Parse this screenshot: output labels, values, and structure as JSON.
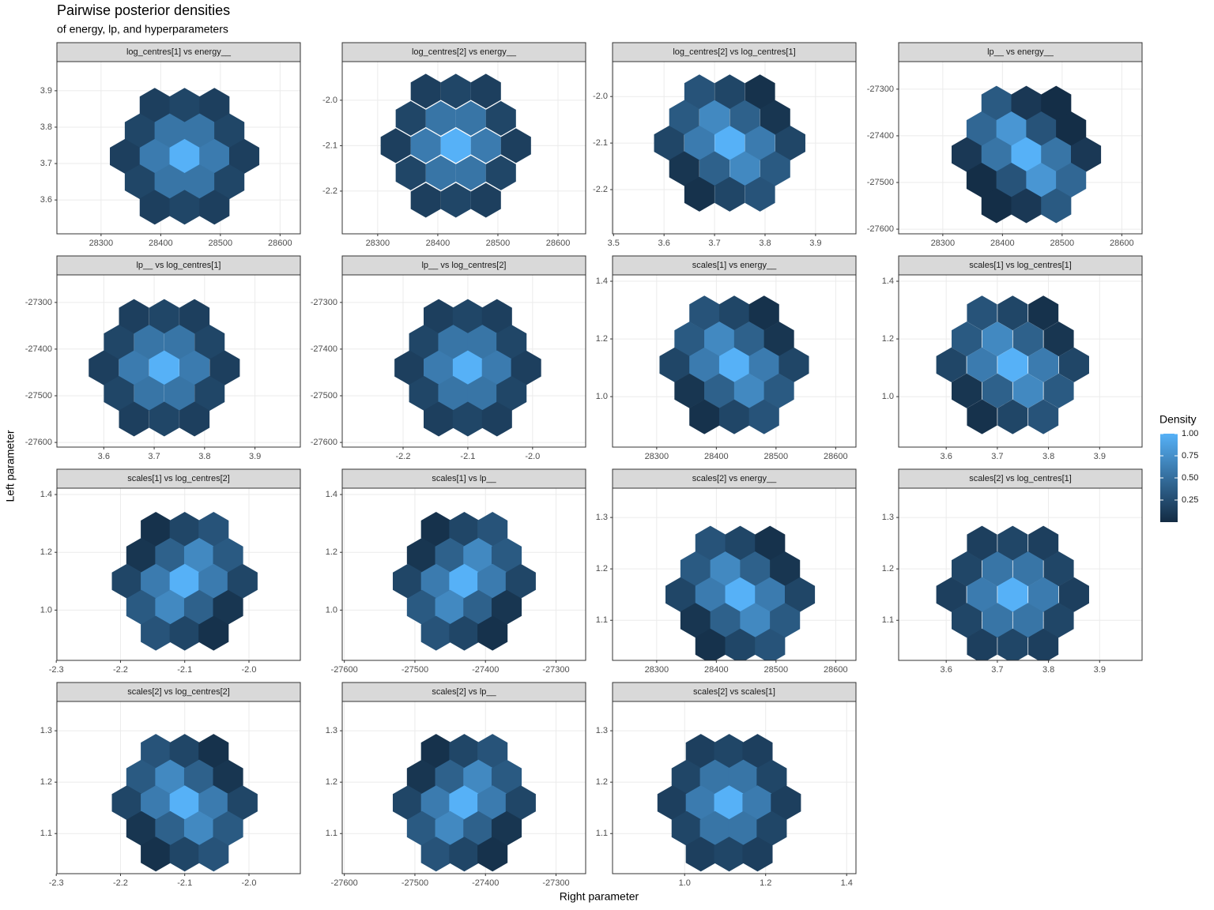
{
  "title": "Pairwise posterior densities",
  "subtitle": "of energy, lp, and hyperparameters",
  "x_label": "Right parameter",
  "y_label": "Left parameter",
  "legend": {
    "title": "Density",
    "colors": [
      "#132B43",
      "#56B1F7"
    ],
    "limits": [
      0,
      1
    ],
    "ticks": [
      0.25,
      {
        "value": 0.5,
        "label": "0.50"
      },
      0.75,
      {
        "value": 1,
        "label": "1.00"
      }
    ]
  },
  "chart_data": [
    {
      "type": "hexbin",
      "title": "log_centres[1] vs energy__",
      "x": [
        28390,
        28440,
        28490,
        28365,
        28415,
        28465,
        28515,
        28340,
        28390,
        28440,
        28490,
        28540,
        28365,
        28415,
        28465,
        28515,
        28390,
        28440,
        28490
      ],
      "y": [
        3.86,
        3.86,
        3.86,
        3.79,
        3.79,
        3.79,
        3.79,
        3.72,
        3.72,
        3.72,
        3.72,
        3.72,
        3.65,
        3.65,
        3.65,
        3.65,
        3.58,
        3.58,
        3.58
      ],
      "values": [
        0.15,
        0.2,
        0.15,
        0.2,
        0.55,
        0.55,
        0.2,
        0.15,
        0.6,
        1,
        0.6,
        0.15,
        0.2,
        0.55,
        0.55,
        0.2,
        0.15,
        0.2,
        0.15
      ],
      "xlim": [
        28226,
        28634
      ],
      "xticks": [
        28300,
        28400,
        28500,
        28600
      ],
      "ylim": [
        3.507,
        3.98
      ],
      "yticks": [
        3.6,
        3.7,
        3.8,
        3.9
      ]
    },
    {
      "type": "hexbin",
      "title": "log_centres[2] vs energy__",
      "x": [
        28380,
        28430,
        28480,
        28355,
        28405,
        28455,
        28505,
        28330,
        28380,
        28430,
        28480,
        28530,
        28355,
        28405,
        28455,
        28505,
        28380,
        28430,
        28480
      ],
      "y": [
        -1.98,
        -1.98,
        -1.98,
        -2.04,
        -2.04,
        -2.04,
        -2.04,
        -2.1,
        -2.1,
        -2.1,
        -2.1,
        -2.1,
        -2.16,
        -2.16,
        -2.16,
        -2.16,
        -2.22,
        -2.22,
        -2.22
      ],
      "values": [
        0.15,
        0.2,
        0.15,
        0.2,
        0.55,
        0.55,
        0.2,
        0.15,
        0.6,
        1,
        0.6,
        0.15,
        0.2,
        0.55,
        0.55,
        0.2,
        0.15,
        0.2,
        0.15
      ],
      "xlim": [
        28241,
        28646
      ],
      "xticks": [
        28300,
        28400,
        28500,
        28600
      ],
      "ylim": [
        -2.294,
        -1.915
      ],
      "yticks": [
        -2.2,
        -2.1,
        {
          "value": -2,
          "label": "-2.0"
        }
      ]
    },
    {
      "type": "hexbin",
      "title": "log_centres[2] vs log_centres[1]",
      "x": [
        3.67,
        3.73,
        3.79,
        3.64,
        3.7,
        3.76,
        3.82,
        3.61,
        3.67,
        3.73,
        3.79,
        3.85,
        3.64,
        3.7,
        3.76,
        3.82,
        3.67,
        3.73,
        3.79
      ],
      "y": [
        -1.99,
        -1.99,
        -1.99,
        -2.045,
        -2.045,
        -2.045,
        -2.045,
        -2.1,
        -2.1,
        -2.1,
        -2.1,
        -2.1,
        -2.155,
        -2.155,
        -2.155,
        -2.155,
        -2.21,
        -2.21,
        -2.21
      ],
      "values": [
        0.3,
        0.2,
        0.05,
        0.35,
        0.7,
        0.4,
        0.08,
        0.2,
        0.6,
        1,
        0.6,
        0.2,
        0.08,
        0.4,
        0.7,
        0.35,
        0.05,
        0.2,
        0.3
      ],
      "xlim": [
        3.498,
        3.98
      ],
      "xticks": [
        3.5,
        3.6,
        3.7,
        3.8,
        3.9
      ],
      "ylim": [
        -2.295,
        -1.925
      ],
      "yticks": [
        -2.2,
        -2.1,
        {
          "value": -2,
          "label": "-2.0"
        }
      ]
    },
    {
      "type": "hexbin",
      "title": "lp__ vs energy__",
      "x": [
        28390,
        28440,
        28490,
        28365,
        28415,
        28465,
        28515,
        28340,
        28390,
        28440,
        28490,
        28540,
        28365,
        28415,
        28465,
        28515,
        28390,
        28440,
        28490
      ],
      "y": [
        -27330,
        -27330,
        -27330,
        -27385,
        -27385,
        -27385,
        -27385,
        -27440,
        -27440,
        -27440,
        -27440,
        -27440,
        -27495,
        -27495,
        -27495,
        -27495,
        -27550,
        -27550,
        -27550
      ],
      "values": [
        0.35,
        0.1,
        0.02,
        0.45,
        0.8,
        0.3,
        0.02,
        0.1,
        0.55,
        1,
        0.55,
        0.1,
        0.02,
        0.3,
        0.8,
        0.45,
        0.02,
        0.1,
        0.35
      ],
      "xlim": [
        28226,
        28634
      ],
      "xticks": [
        28300,
        28400,
        28500,
        28600
      ],
      "ylim": [
        -27610,
        -27241
      ],
      "yticks": [
        -27600,
        -27500,
        -27400,
        -27300
      ]
    },
    {
      "type": "hexbin",
      "title": "lp__ vs log_centres[1]",
      "x": [
        3.66,
        3.72,
        3.78,
        3.63,
        3.69,
        3.75,
        3.81,
        3.6,
        3.66,
        3.72,
        3.78,
        3.84,
        3.63,
        3.69,
        3.75,
        3.81,
        3.66,
        3.72,
        3.78
      ],
      "y": [
        -27330,
        -27330,
        -27330,
        -27385,
        -27385,
        -27385,
        -27385,
        -27440,
        -27440,
        -27440,
        -27440,
        -27440,
        -27495,
        -27495,
        -27495,
        -27495,
        -27550,
        -27550,
        -27550
      ],
      "values": [
        0.15,
        0.2,
        0.15,
        0.2,
        0.55,
        0.55,
        0.2,
        0.15,
        0.6,
        1,
        0.6,
        0.15,
        0.2,
        0.55,
        0.55,
        0.2,
        0.15,
        0.2,
        0.15
      ],
      "xlim": [
        3.507,
        3.99
      ],
      "xticks": [
        3.6,
        3.7,
        3.8,
        3.9
      ],
      "ylim": [
        -27610,
        -27241
      ],
      "yticks": [
        -27600,
        -27500,
        -27400,
        -27300
      ]
    },
    {
      "type": "hexbin",
      "title": "lp__ vs log_centres[2]",
      "x": [
        -2.145,
        -2.1,
        -2.055,
        -2.1675,
        -2.1225,
        -2.0775,
        -2.0325,
        -2.19,
        -2.145,
        -2.1,
        -2.055,
        -2.01,
        -2.1675,
        -2.1225,
        -2.0775,
        -2.0325,
        -2.145,
        -2.1,
        -2.055
      ],
      "y": [
        -27330,
        -27330,
        -27330,
        -27385,
        -27385,
        -27385,
        -27385,
        -27440,
        -27440,
        -27440,
        -27440,
        -27440,
        -27495,
        -27495,
        -27495,
        -27495,
        -27550,
        -27550,
        -27550
      ],
      "values": [
        0.15,
        0.2,
        0.15,
        0.2,
        0.55,
        0.55,
        0.2,
        0.15,
        0.6,
        1,
        0.6,
        0.15,
        0.2,
        0.55,
        0.55,
        0.2,
        0.15,
        0.2,
        0.15
      ],
      "xlim": [
        -2.294,
        -1.918
      ],
      "xticks": [
        -2.2,
        -2.1,
        {
          "value": -2,
          "label": "-2.0"
        }
      ],
      "ylim": [
        -27610,
        -27241
      ],
      "yticks": [
        -27600,
        -27500,
        -27400,
        -27300
      ]
    },
    {
      "type": "hexbin",
      "title": "scales[1] vs energy__",
      "x": [
        28380,
        28430,
        28480,
        28355,
        28405,
        28455,
        28505,
        28330,
        28380,
        28430,
        28480,
        28530,
        28355,
        28405,
        28455,
        28505,
        28380,
        28430,
        28480
      ],
      "y": [
        1.29,
        1.29,
        1.29,
        1.2,
        1.2,
        1.2,
        1.2,
        1.11,
        1.11,
        1.11,
        1.11,
        1.11,
        1.02,
        1.02,
        1.02,
        1.02,
        0.93,
        0.93,
        0.93
      ],
      "values": [
        0.3,
        0.2,
        0.05,
        0.35,
        0.7,
        0.4,
        0.08,
        0.2,
        0.6,
        1,
        0.6,
        0.2,
        0.08,
        0.4,
        0.7,
        0.35,
        0.05,
        0.2,
        0.3
      ],
      "xlim": [
        28226,
        28634
      ],
      "xticks": [
        28300,
        28400,
        28500,
        28600
      ],
      "ylim": [
        0.825,
        1.422
      ],
      "yticks": [
        {
          "value": 1,
          "label": "1.0"
        },
        1.2,
        1.4
      ]
    },
    {
      "type": "hexbin",
      "title": "scales[1] vs log_centres[1]",
      "x": [
        3.67,
        3.73,
        3.79,
        3.64,
        3.7,
        3.76,
        3.82,
        3.61,
        3.67,
        3.73,
        3.79,
        3.85,
        3.64,
        3.7,
        3.76,
        3.82,
        3.67,
        3.73,
        3.79
      ],
      "y": [
        1.29,
        1.29,
        1.29,
        1.2,
        1.2,
        1.2,
        1.2,
        1.11,
        1.11,
        1.11,
        1.11,
        1.11,
        1.02,
        1.02,
        1.02,
        1.02,
        0.93,
        0.93,
        0.93
      ],
      "values": [
        0.3,
        0.2,
        0.05,
        0.35,
        0.7,
        0.4,
        0.08,
        0.2,
        0.6,
        1,
        0.6,
        0.2,
        0.08,
        0.4,
        0.7,
        0.35,
        0.05,
        0.2,
        0.3
      ],
      "xlim": [
        3.507,
        3.983
      ],
      "xticks": [
        3.6,
        3.7,
        3.8,
        3.9
      ],
      "ylim": [
        0.825,
        1.422
      ],
      "yticks": [
        {
          "value": 1,
          "label": "1.0"
        },
        1.2,
        1.4
      ]
    },
    {
      "type": "hexbin",
      "title": "scales[1] vs log_centres[2]",
      "x": [
        -2.145,
        -2.1,
        -2.055,
        -2.1675,
        -2.1225,
        -2.0775,
        -2.0325,
        -2.19,
        -2.145,
        -2.1,
        -2.055,
        -2.01,
        -2.1675,
        -2.1225,
        -2.0775,
        -2.0325,
        -2.145,
        -2.1,
        -2.055
      ],
      "y": [
        1.28,
        1.28,
        1.28,
        1.19,
        1.19,
        1.19,
        1.19,
        1.1,
        1.1,
        1.1,
        1.1,
        1.1,
        1.01,
        1.01,
        1.01,
        1.01,
        0.92,
        0.92,
        0.92
      ],
      "values": [
        0.05,
        0.2,
        0.3,
        0.08,
        0.4,
        0.7,
        0.35,
        0.2,
        0.6,
        1,
        0.6,
        0.2,
        0.35,
        0.7,
        0.4,
        0.08,
        0.3,
        0.2,
        0.05
      ],
      "xlim": [
        -2.299,
        -1.92
      ],
      "xticks": [
        -2.3,
        -2.2,
        -2.1,
        {
          "value": -2,
          "label": "-2.0"
        }
      ],
      "ylim": [
        0.826,
        1.422
      ],
      "yticks": [
        {
          "value": 1,
          "label": "1.0"
        },
        1.2,
        1.4
      ]
    },
    {
      "type": "hexbin",
      "title": "scales[1] vs lp__",
      "x": [
        -27470,
        -27430,
        -27390,
        -27490,
        -27450,
        -27410,
        -27370,
        -27510,
        -27470,
        -27430,
        -27390,
        -27350,
        -27490,
        -27450,
        -27410,
        -27370,
        -27470,
        -27430,
        -27390
      ],
      "y": [
        1.28,
        1.28,
        1.28,
        1.19,
        1.19,
        1.19,
        1.19,
        1.1,
        1.1,
        1.1,
        1.1,
        1.1,
        1.01,
        1.01,
        1.01,
        1.01,
        0.92,
        0.92,
        0.92
      ],
      "values": [
        0.05,
        0.2,
        0.3,
        0.08,
        0.4,
        0.7,
        0.35,
        0.2,
        0.6,
        1,
        0.6,
        0.2,
        0.35,
        0.7,
        0.4,
        0.08,
        0.3,
        0.2,
        0.05
      ],
      "xlim": [
        -27603,
        -27258
      ],
      "xticks": [
        -27600,
        -27500,
        -27400,
        -27300
      ],
      "ylim": [
        0.826,
        1.422
      ],
      "yticks": [
        {
          "value": 1,
          "label": "1.0"
        },
        1.2,
        1.4
      ]
    },
    {
      "type": "hexbin",
      "title": "scales[2] vs energy__",
      "x": [
        28390,
        28440,
        28490,
        28365,
        28415,
        28465,
        28515,
        28340,
        28390,
        28440,
        28490,
        28540,
        28365,
        28415,
        28465,
        28515,
        28390,
        28440,
        28490
      ],
      "y": [
        1.25,
        1.25,
        1.25,
        1.2,
        1.2,
        1.2,
        1.2,
        1.15,
        1.15,
        1.15,
        1.15,
        1.15,
        1.1,
        1.1,
        1.1,
        1.1,
        1.05,
        1.05,
        1.05
      ],
      "values": [
        0.3,
        0.2,
        0.05,
        0.35,
        0.7,
        0.4,
        0.08,
        0.2,
        0.6,
        1,
        0.6,
        0.2,
        0.08,
        0.4,
        0.7,
        0.35,
        0.05,
        0.2,
        0.3
      ],
      "xlim": [
        28226,
        28634
      ],
      "xticks": [
        28300,
        28400,
        28500,
        28600
      ],
      "ylim": [
        1.022,
        1.357
      ],
      "yticks": [
        1.1,
        1.2,
        1.3
      ]
    },
    {
      "type": "hexbin",
      "title": "scales[2] vs log_centres[1]",
      "x": [
        3.67,
        3.73,
        3.79,
        3.64,
        3.7,
        3.76,
        3.82,
        3.61,
        3.67,
        3.73,
        3.79,
        3.85,
        3.64,
        3.7,
        3.76,
        3.82,
        3.67,
        3.73,
        3.79
      ],
      "y": [
        1.25,
        1.25,
        1.25,
        1.2,
        1.2,
        1.2,
        1.2,
        1.15,
        1.15,
        1.15,
        1.15,
        1.15,
        1.1,
        1.1,
        1.1,
        1.1,
        1.05,
        1.05,
        1.05
      ],
      "values": [
        0.15,
        0.2,
        0.15,
        0.2,
        0.55,
        0.55,
        0.2,
        0.15,
        0.6,
        1,
        0.6,
        0.15,
        0.2,
        0.55,
        0.55,
        0.2,
        0.15,
        0.2,
        0.15
      ],
      "xlim": [
        3.507,
        3.983
      ],
      "xticks": [
        3.6,
        3.7,
        3.8,
        3.9
      ],
      "ylim": [
        1.022,
        1.357
      ],
      "yticks": [
        1.1,
        1.2,
        1.3
      ]
    },
    {
      "type": "hexbin",
      "title": "scales[2] vs log_centres[2]",
      "x": [
        -2.145,
        -2.1,
        -2.055,
        -2.1675,
        -2.1225,
        -2.0775,
        -2.0325,
        -2.19,
        -2.145,
        -2.1,
        -2.055,
        -2.01,
        -2.1675,
        -2.1225,
        -2.0775,
        -2.0325,
        -2.145,
        -2.1,
        -2.055
      ],
      "y": [
        1.26,
        1.26,
        1.26,
        1.21,
        1.21,
        1.21,
        1.21,
        1.16,
        1.16,
        1.16,
        1.16,
        1.16,
        1.11,
        1.11,
        1.11,
        1.11,
        1.06,
        1.06,
        1.06
      ],
      "values": [
        0.3,
        0.2,
        0.05,
        0.35,
        0.7,
        0.4,
        0.08,
        0.2,
        0.6,
        1,
        0.6,
        0.2,
        0.08,
        0.4,
        0.7,
        0.35,
        0.05,
        0.2,
        0.3
      ],
      "xlim": [
        -2.299,
        -1.92
      ],
      "xticks": [
        -2.3,
        -2.2,
        -2.1,
        {
          "value": -2,
          "label": "-2.0"
        }
      ],
      "ylim": [
        1.022,
        1.357
      ],
      "yticks": [
        1.1,
        1.2,
        1.3
      ]
    },
    {
      "type": "hexbin",
      "title": "scales[2] vs lp__",
      "x": [
        -27470,
        -27430,
        -27390,
        -27490,
        -27450,
        -27410,
        -27370,
        -27510,
        -27470,
        -27430,
        -27390,
        -27350,
        -27490,
        -27450,
        -27410,
        -27370,
        -27470,
        -27430,
        -27390
      ],
      "y": [
        1.26,
        1.26,
        1.26,
        1.21,
        1.21,
        1.21,
        1.21,
        1.16,
        1.16,
        1.16,
        1.16,
        1.16,
        1.11,
        1.11,
        1.11,
        1.11,
        1.06,
        1.06,
        1.06
      ],
      "values": [
        0.05,
        0.2,
        0.3,
        0.08,
        0.4,
        0.7,
        0.35,
        0.2,
        0.6,
        1,
        0.6,
        0.2,
        0.35,
        0.7,
        0.4,
        0.08,
        0.3,
        0.2,
        0.05
      ],
      "xlim": [
        -27603,
        -27258
      ],
      "xticks": [
        -27600,
        -27500,
        -27400,
        -27300
      ],
      "ylim": [
        1.022,
        1.357
      ],
      "yticks": [
        1.1,
        1.2,
        1.3
      ]
    },
    {
      "type": "hexbin",
      "title": "scales[2] vs scales[1]",
      "x": [
        1.04,
        1.11,
        1.18,
        1.005,
        1.075,
        1.145,
        1.215,
        0.97,
        1.04,
        1.11,
        1.18,
        1.25,
        1.005,
        1.075,
        1.145,
        1.215,
        1.04,
        1.11,
        1.18
      ],
      "y": [
        1.26,
        1.26,
        1.26,
        1.21,
        1.21,
        1.21,
        1.21,
        1.16,
        1.16,
        1.16,
        1.16,
        1.16,
        1.11,
        1.11,
        1.11,
        1.11,
        1.06,
        1.06,
        1.06
      ],
      "values": [
        0.15,
        0.2,
        0.15,
        0.2,
        0.55,
        0.55,
        0.2,
        0.15,
        0.6,
        1,
        0.6,
        0.15,
        0.2,
        0.55,
        0.55,
        0.2,
        0.15,
        0.2,
        0.15
      ],
      "xlim": [
        0.822,
        1.423
      ],
      "xticks": [
        {
          "value": 1,
          "label": "1.0"
        },
        1.2,
        1.4
      ],
      "ylim": [
        1.022,
        1.357
      ],
      "yticks": [
        1.1,
        1.2,
        1.3
      ]
    }
  ]
}
